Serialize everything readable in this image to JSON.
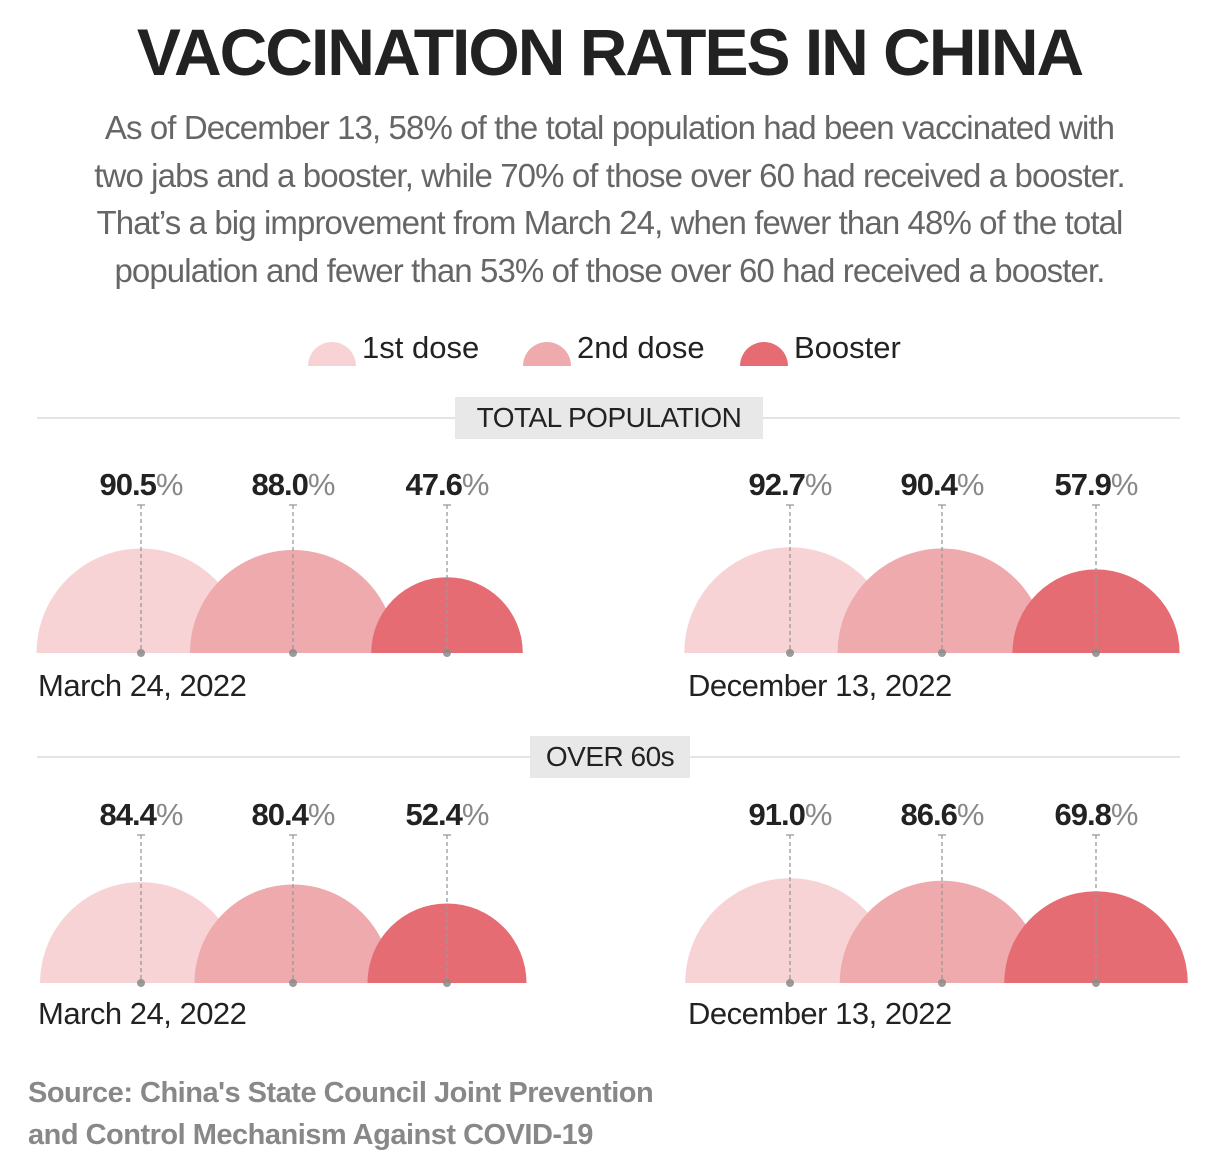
{
  "title": "VACCINATION RATES IN CHINA",
  "subtitle": [
    "As of December 13, 58% of the total population had been vaccinated with",
    "two jabs and a booster, while 70% of those over 60 had received a booster.",
    "That’s a big improvement from March 24, when fewer than 48% of the total",
    "population and fewer than 53% of those over 60 had received a booster."
  ],
  "legend": [
    {
      "label": "1st dose",
      "color": "#f7d3d6"
    },
    {
      "label": "2nd dose",
      "color": "#eeaaad"
    },
    {
      "label": "Booster",
      "color": "#e66c74"
    }
  ],
  "sections": [
    "TOTAL POPULATION",
    "OVER 60s"
  ],
  "source": [
    "Source: China's State Council Joint Prevention",
    "and Control Mechanism Against COVID-19"
  ],
  "chart_data": [
    {
      "type": "semicircle-area",
      "section": "TOTAL POPULATION",
      "date": "March 24, 2022",
      "categories": [
        "1st dose",
        "2nd dose",
        "Booster"
      ],
      "values": [
        90.5,
        88.0,
        47.6
      ],
      "labels": [
        "90.5%",
        "88.0%",
        "47.6%"
      ]
    },
    {
      "type": "semicircle-area",
      "section": "TOTAL POPULATION",
      "date": "December 13, 2022",
      "categories": [
        "1st dose",
        "2nd dose",
        "Booster"
      ],
      "values": [
        92.7,
        90.4,
        57.9
      ],
      "labels": [
        "92.7%",
        "90.4%",
        "57.9%"
      ]
    },
    {
      "type": "semicircle-area",
      "section": "OVER 60s",
      "date": "March 24, 2022",
      "categories": [
        "1st dose",
        "2nd dose",
        "Booster"
      ],
      "values": [
        84.4,
        80.4,
        52.4
      ],
      "labels": [
        "84.4%",
        "80.4%",
        "52.4%"
      ]
    },
    {
      "type": "semicircle-area",
      "section": "OVER 60s",
      "date": "December 13, 2022",
      "categories": [
        "1st dose",
        "2nd dose",
        "Booster"
      ],
      "values": [
        91.0,
        86.6,
        69.8
      ],
      "labels": [
        "91.0%",
        "86.6%",
        "69.8%"
      ]
    }
  ]
}
